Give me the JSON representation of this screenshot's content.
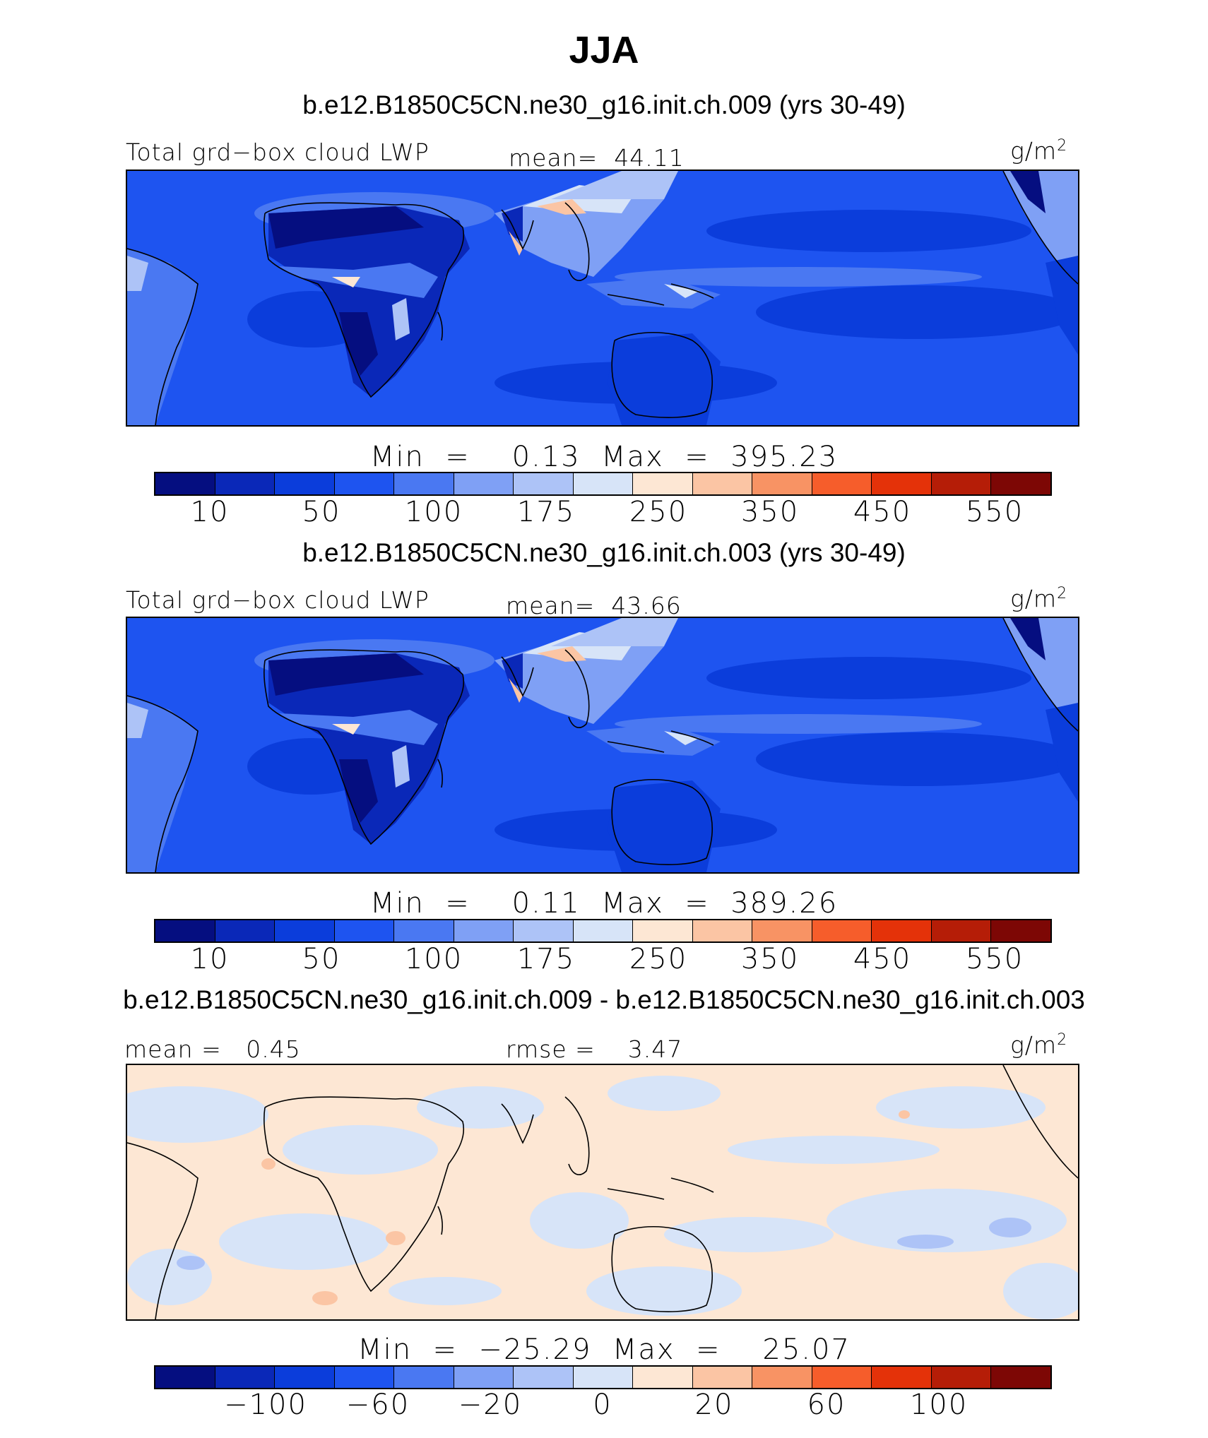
{
  "title": "JJA",
  "panels": [
    {
      "case": "b.e12.B1850C5CN.ne30_g16.init.ch.009 (yrs 30-49)",
      "var_label": "Total grd−box cloud LWP",
      "stat_label": "mean=",
      "stat_value": "44.11",
      "units_base": "g/m",
      "units_exp": "2",
      "min_label": "Min",
      "min_value": "0.13",
      "max_label": "Max",
      "max_value": "395.23",
      "colorbar_ticks": [
        "10",
        "50",
        "100",
        "175",
        "250",
        "350",
        "450",
        "550"
      ]
    },
    {
      "case": "b.e12.B1850C5CN.ne30_g16.init.ch.003 (yrs 30-49)",
      "var_label": "Total grd−box cloud LWP",
      "stat_label": "mean=",
      "stat_value": "43.66",
      "units_base": "g/m",
      "units_exp": "2",
      "min_label": "Min",
      "min_value": "0.11",
      "max_label": "Max",
      "max_value": "389.26",
      "colorbar_ticks": [
        "10",
        "50",
        "100",
        "175",
        "250",
        "350",
        "450",
        "550"
      ]
    },
    {
      "case": "b.e12.B1850C5CN.ne30_g16.init.ch.009 - b.e12.B1850C5CN.ne30_g16.init.ch.003",
      "mean_label": "mean =",
      "mean_value": "0.45",
      "rmse_label": "rmse =",
      "rmse_value": "3.47",
      "units_base": "g/m",
      "units_exp": "2",
      "min_label": "Min",
      "min_value": "−25.29",
      "max_label": "Max",
      "max_value": "25.07",
      "colorbar_ticks": [
        "−100",
        "−60",
        "−20",
        "0",
        "20",
        "60",
        "100"
      ]
    }
  ],
  "colors": {
    "abs_palette": [
      "#050e80",
      "#0a28b8",
      "#0b3ddb",
      "#1e54f0",
      "#4a78f2",
      "#7fa0f5",
      "#adc3f7",
      "#d7e4f8",
      "#fde7d4",
      "#fbc5a4",
      "#f89364",
      "#f65d2b",
      "#e43209",
      "#b51d07",
      "#7d0705"
    ],
    "diff_palette": [
      "#050e80",
      "#0a28b8",
      "#0b3ddb",
      "#1e54f0",
      "#4a78f2",
      "#7fa0f5",
      "#adc3f7",
      "#d7e4f8",
      "#fde7d4",
      "#fbc5a4",
      "#f89364",
      "#f65d2b",
      "#e43209",
      "#b51d07",
      "#7d0705"
    ],
    "coastline": "#000000"
  }
}
